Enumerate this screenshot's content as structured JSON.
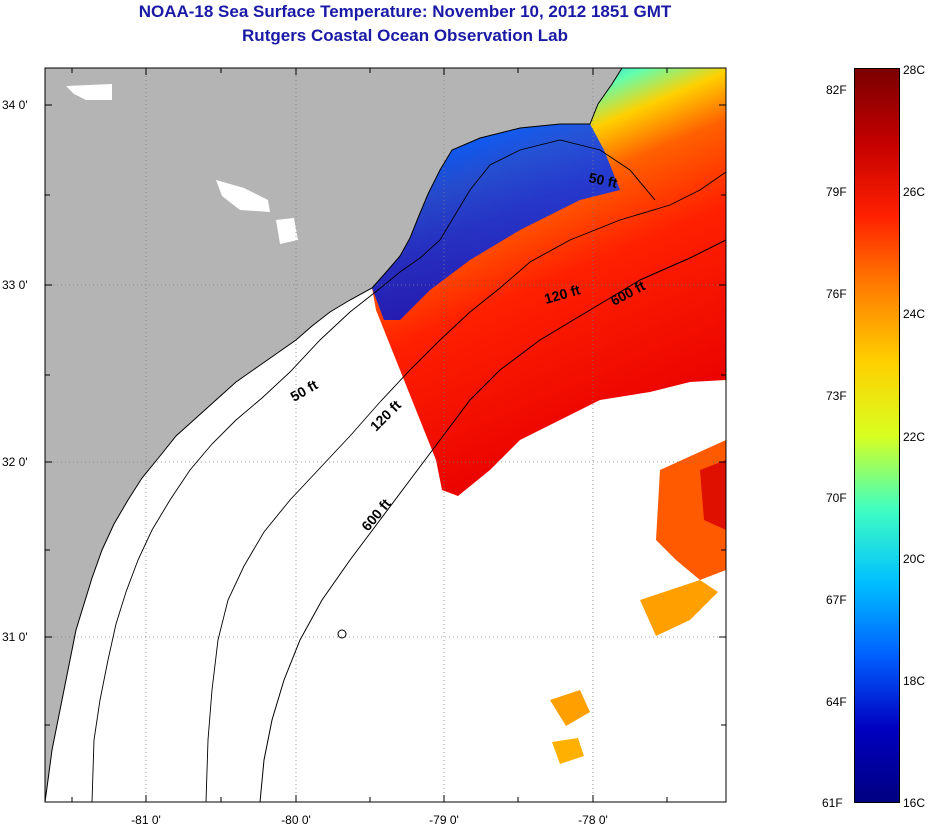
{
  "title": {
    "line1": "NOAA-18 Sea Surface Temperature:  November 10, 2012 1851 GMT",
    "line2": "Rutgers Coastal Ocean Observation Lab"
  },
  "map": {
    "lat_labels": [
      "34 0'",
      "33 0'",
      "32 0'",
      "31 0'"
    ],
    "lon_labels": [
      "-81 0'",
      "-80 0'",
      "-79 0'",
      "-78 0'"
    ],
    "contour_labels": [
      "50 ft",
      "120 ft",
      "600 ft",
      "50 ft",
      "120 ft",
      "600 ft"
    ],
    "colors": {
      "land": "#b4b4b4",
      "ocean_nodata": "#ffffff"
    }
  },
  "colorbar": {
    "fahrenheit_labels": [
      "82F",
      "79F",
      "76F",
      "73F",
      "70F",
      "67F",
      "64F",
      "61F"
    ],
    "celsius_labels": [
      "28C",
      "26C",
      "24C",
      "22C",
      "20C",
      "18C",
      "16C"
    ],
    "colors": [
      "#7a0000",
      "#c40000",
      "#ff2000",
      "#ff8000",
      "#ffd000",
      "#d8ff20",
      "#40ffc0",
      "#00c0ff",
      "#0060ff",
      "#0000c0",
      "#000080"
    ]
  }
}
